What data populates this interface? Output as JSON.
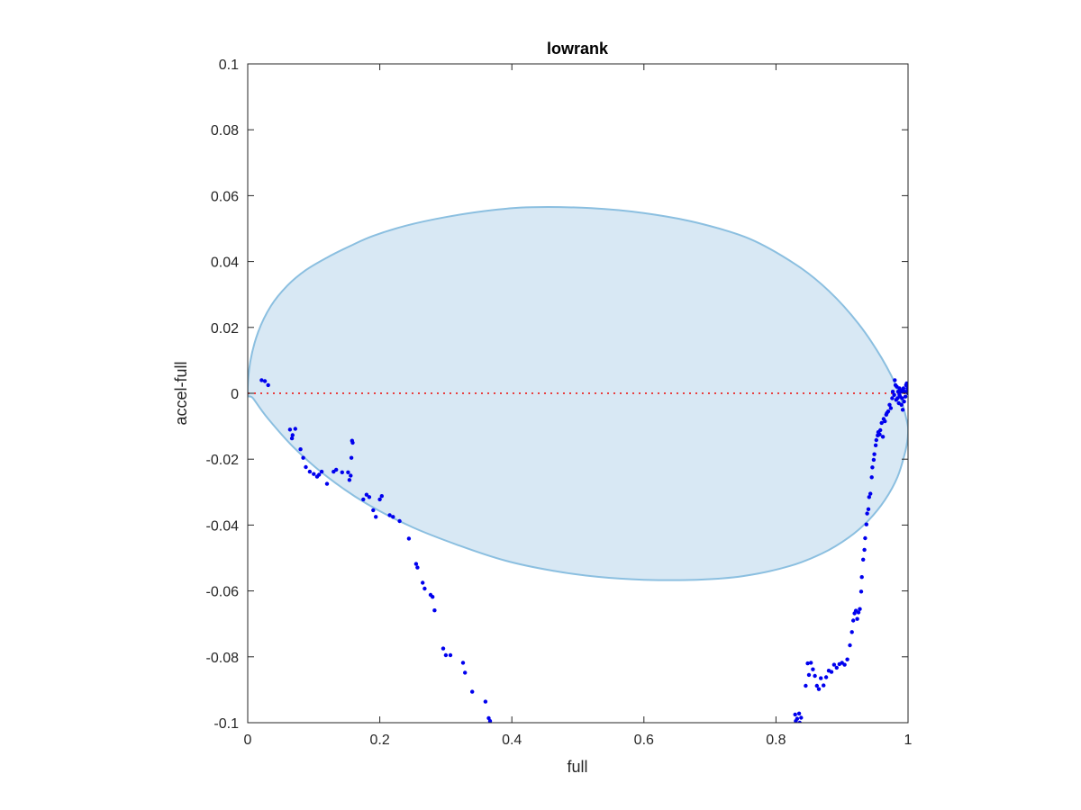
{
  "chart_data": {
    "type": "scatter",
    "title": "lowrank",
    "xlabel": "full",
    "ylabel": "accel-full",
    "xlim": [
      0,
      1
    ],
    "ylim": [
      -0.1,
      0.1
    ],
    "xticks": [
      0,
      0.2,
      0.4,
      0.6,
      0.8,
      1
    ],
    "xtick_labels": [
      "0",
      "0.2",
      "0.4",
      "0.6",
      "0.8",
      "1"
    ],
    "yticks": [
      0.1,
      0.08,
      0.06,
      0.04,
      0.02,
      0,
      -0.02,
      -0.04,
      -0.06,
      -0.08,
      -0.1
    ],
    "ytick_labels": [
      "0.1",
      "0.08",
      "0.06",
      "0.04",
      "0.02",
      "0",
      "-0.02",
      "-0.04",
      "-0.06",
      "-0.08",
      "-0.1"
    ],
    "grid": false,
    "colors": {
      "points": "#0000ee",
      "zero_line": "#e84040",
      "ellipse_fill": "#d8e8f4",
      "ellipse_edge": "#8bbfe0",
      "axes": "#262626"
    },
    "reference_line": {
      "y": 0,
      "style": "dotted"
    },
    "ellipse": {
      "boundary": [
        [
          0.0,
          0.0
        ],
        [
          0.004,
          0.0097
        ],
        [
          0.016,
          0.0187
        ],
        [
          0.035,
          0.0265
        ],
        [
          0.06,
          0.0327
        ],
        [
          0.088,
          0.0374
        ],
        [
          0.12,
          0.0412
        ],
        [
          0.155,
          0.0447
        ],
        [
          0.19,
          0.0478
        ],
        [
          0.24,
          0.0509
        ],
        [
          0.3,
          0.0535
        ],
        [
          0.37,
          0.0556
        ],
        [
          0.43,
          0.0565
        ],
        [
          0.52,
          0.0562
        ],
        [
          0.6,
          0.0547
        ],
        [
          0.68,
          0.0518
        ],
        [
          0.76,
          0.0469
        ],
        [
          0.83,
          0.0391
        ],
        [
          0.88,
          0.0311
        ],
        [
          0.925,
          0.0211
        ],
        [
          0.96,
          0.0107
        ],
        [
          0.985,
          0.0008
        ],
        [
          0.998,
          -0.0082
        ],
        [
          1.0,
          -0.0122
        ],
        [
          0.996,
          -0.0175
        ],
        [
          0.984,
          -0.0254
        ],
        [
          0.965,
          -0.0324
        ],
        [
          0.94,
          -0.0386
        ],
        [
          0.91,
          -0.0438
        ],
        [
          0.87,
          -0.0486
        ],
        [
          0.82,
          -0.0525
        ],
        [
          0.75,
          -0.0555
        ],
        [
          0.68,
          -0.0566
        ],
        [
          0.6,
          -0.0566
        ],
        [
          0.53,
          -0.0557
        ],
        [
          0.46,
          -0.0538
        ],
        [
          0.39,
          -0.0508
        ],
        [
          0.32,
          -0.0462
        ],
        [
          0.25,
          -0.0407
        ],
        [
          0.18,
          -0.0335
        ],
        [
          0.12,
          -0.0253
        ],
        [
          0.07,
          -0.0165
        ],
        [
          0.03,
          -0.0075
        ],
        [
          0.008,
          -0.0015
        ]
      ]
    },
    "series": [
      {
        "points": [
          [
            0.021,
            0.004
          ],
          [
            0.026,
            0.0037
          ],
          [
            0.031,
            0.0025
          ],
          [
            0.064,
            -0.011
          ],
          [
            0.068,
            -0.0127
          ],
          [
            0.072,
            -0.0108
          ],
          [
            0.067,
            -0.0137
          ],
          [
            0.08,
            -0.017
          ],
          [
            0.084,
            -0.0196
          ],
          [
            0.088,
            -0.0224
          ],
          [
            0.094,
            -0.0238
          ],
          [
            0.1,
            -0.0245
          ],
          [
            0.105,
            -0.0253
          ],
          [
            0.108,
            -0.0247
          ],
          [
            0.112,
            -0.0238
          ],
          [
            0.12,
            -0.0275
          ],
          [
            0.13,
            -0.0238
          ],
          [
            0.134,
            -0.0232
          ],
          [
            0.143,
            -0.024
          ],
          [
            0.152,
            -0.024
          ],
          [
            0.156,
            -0.025
          ],
          [
            0.154,
            -0.0263
          ],
          [
            0.157,
            -0.0196
          ],
          [
            0.158,
            -0.0144
          ],
          [
            0.159,
            -0.015
          ],
          [
            0.175,
            -0.0322
          ],
          [
            0.18,
            -0.0308
          ],
          [
            0.184,
            -0.0315
          ],
          [
            0.19,
            -0.0355
          ],
          [
            0.194,
            -0.0375
          ],
          [
            0.2,
            -0.0322
          ],
          [
            0.203,
            -0.0312
          ],
          [
            0.215,
            -0.037
          ],
          [
            0.22,
            -0.0375
          ],
          [
            0.23,
            -0.0388
          ],
          [
            0.244,
            -0.0441
          ],
          [
            0.255,
            -0.0518
          ],
          [
            0.257,
            -0.0529
          ],
          [
            0.265,
            -0.0575
          ],
          [
            0.268,
            -0.0593
          ],
          [
            0.277,
            -0.0612
          ],
          [
            0.28,
            -0.0618
          ],
          [
            0.283,
            -0.0659
          ],
          [
            0.296,
            -0.0775
          ],
          [
            0.3,
            -0.0795
          ],
          [
            0.307,
            -0.0795
          ],
          [
            0.326,
            -0.0818
          ],
          [
            0.329,
            -0.0848
          ],
          [
            0.34,
            -0.0906
          ],
          [
            0.36,
            -0.0936
          ],
          [
            0.365,
            -0.0986
          ],
          [
            0.367,
            -0.0995
          ],
          [
            0.829,
            -0.0975
          ],
          [
            0.832,
            -0.0988
          ],
          [
            0.835,
            -0.0972
          ],
          [
            0.838,
            -0.0985
          ],
          [
            0.83,
            -0.0995
          ],
          [
            0.836,
            -0.1
          ],
          [
            0.845,
            -0.0888
          ],
          [
            0.85,
            -0.0855
          ],
          [
            0.848,
            -0.082
          ],
          [
            0.853,
            -0.0818
          ],
          [
            0.856,
            -0.0838
          ],
          [
            0.859,
            -0.0858
          ],
          [
            0.862,
            -0.0888
          ],
          [
            0.865,
            -0.0898
          ],
          [
            0.868,
            -0.0865
          ],
          [
            0.872,
            -0.0887
          ],
          [
            0.876,
            -0.0862
          ],
          [
            0.88,
            -0.0842
          ],
          [
            0.884,
            -0.0846
          ],
          [
            0.888,
            -0.0824
          ],
          [
            0.892,
            -0.0833
          ],
          [
            0.896,
            -0.0822
          ],
          [
            0.9,
            -0.0818
          ],
          [
            0.904,
            -0.0824
          ],
          [
            0.908,
            -0.0808
          ],
          [
            0.912,
            -0.0765
          ],
          [
            0.915,
            -0.0725
          ],
          [
            0.917,
            -0.069
          ],
          [
            0.919,
            -0.0668
          ],
          [
            0.921,
            -0.066
          ],
          [
            0.923,
            -0.0685
          ],
          [
            0.925,
            -0.0665
          ],
          [
            0.927,
            -0.0655
          ],
          [
            0.929,
            -0.0602
          ],
          [
            0.93,
            -0.0558
          ],
          [
            0.932,
            -0.0505
          ],
          [
            0.934,
            -0.0475
          ],
          [
            0.935,
            -0.044
          ],
          [
            0.937,
            -0.0398
          ],
          [
            0.938,
            -0.0365
          ],
          [
            0.94,
            -0.0352
          ],
          [
            0.941,
            -0.0315
          ],
          [
            0.943,
            -0.0305
          ],
          [
            0.945,
            -0.0255
          ],
          [
            0.946,
            -0.0225
          ],
          [
            0.948,
            -0.0202
          ],
          [
            0.949,
            -0.0185
          ],
          [
            0.951,
            -0.0158
          ],
          [
            0.952,
            -0.0142
          ],
          [
            0.954,
            -0.0128
          ],
          [
            0.955,
            -0.0118
          ],
          [
            0.957,
            -0.0125
          ],
          [
            0.958,
            -0.0112
          ],
          [
            0.96,
            -0.009
          ],
          [
            0.962,
            -0.0132
          ],
          [
            0.963,
            -0.0078
          ],
          [
            0.965,
            -0.0085
          ],
          [
            0.967,
            -0.0065
          ],
          [
            0.968,
            -0.006
          ],
          [
            0.97,
            -0.0055
          ],
          [
            0.972,
            -0.0035
          ],
          [
            0.974,
            -0.0045
          ],
          [
            0.976,
            -0.0015
          ],
          [
            0.977,
            0.0005
          ],
          [
            0.979,
            -0.0005
          ],
          [
            0.98,
            0.004
          ],
          [
            0.981,
            0.0025
          ],
          [
            0.982,
            -0.002
          ],
          [
            0.983,
            0.002
          ],
          [
            0.984,
            -0.0015
          ],
          [
            0.985,
            0.0005
          ],
          [
            0.986,
            -0.003
          ],
          [
            0.987,
            0.0015
          ],
          [
            0.988,
            -0.001
          ],
          [
            0.989,
            0.0005
          ],
          [
            0.99,
            -0.0035
          ],
          [
            0.991,
            -0.0015
          ],
          [
            0.992,
            -0.005
          ],
          [
            0.993,
            0.0015
          ],
          [
            0.994,
            -0.0025
          ],
          [
            0.995,
            0.0005
          ],
          [
            0.996,
            -0.001
          ],
          [
            0.997,
            0.0025
          ],
          [
            0.998,
            0.0005
          ],
          [
            0.999,
            0.0015
          ],
          [
            1.0,
            0.0
          ],
          [
            0.998,
            0.003
          ],
          [
            0.994,
            0.0005
          ],
          [
            0.991,
            0.0008
          ],
          [
            0.987,
            -0.0005
          ]
        ]
      }
    ]
  }
}
